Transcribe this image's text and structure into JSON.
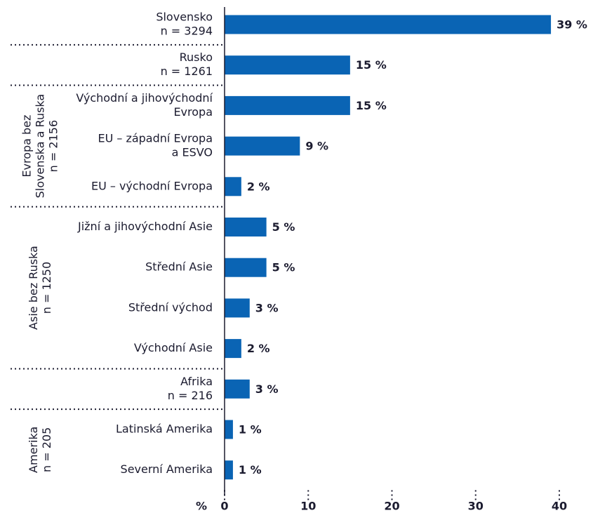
{
  "chart_data": {
    "type": "bar",
    "color": "#0a64b4",
    "xlabel": "%",
    "xlim": [
      0,
      40
    ],
    "xticks": [
      0,
      10,
      20,
      30,
      40
    ],
    "groups": [
      {
        "categories": [
          [
            "Slovensko",
            "n = 3294"
          ]
        ],
        "values": [
          39
        ],
        "value_labels": [
          "39 %"
        ]
      },
      {
        "categories": [
          [
            "Rusko",
            "n = 1261"
          ]
        ],
        "values": [
          15
        ],
        "value_labels": [
          "15 %"
        ]
      },
      {
        "name": [
          "Evropa bez",
          "Slovenska a Ruska",
          "n = 2156"
        ],
        "categories": [
          [
            "Východní a jihovýchodní",
            "Evropa"
          ],
          [
            "EU – západní Evropa",
            "a ESVO"
          ],
          [
            "EU – východní Evropa"
          ]
        ],
        "values": [
          15,
          9,
          2
        ],
        "value_labels": [
          "15 %",
          "9 %",
          "2 %"
        ]
      },
      {
        "name": [
          "Asie bez Ruska",
          "n = 1250"
        ],
        "categories": [
          [
            "Jižní a jihovýchodní Asie"
          ],
          [
            "Střední Asie"
          ],
          [
            "Střední východ"
          ],
          [
            "Východní Asie"
          ]
        ],
        "values": [
          5,
          5,
          3,
          2
        ],
        "value_labels": [
          "5 %",
          "5 %",
          "3 %",
          "2 %"
        ]
      },
      {
        "categories": [
          [
            "Afrika",
            "n = 216"
          ]
        ],
        "values": [
          3
        ],
        "value_labels": [
          "3 %"
        ]
      },
      {
        "name": [
          "Amerika",
          "n = 205"
        ],
        "categories": [
          [
            "Latinská Amerika"
          ],
          [
            "Severní Amerika"
          ]
        ],
        "values": [
          1,
          1
        ],
        "value_labels": [
          "1 %",
          "1 %"
        ]
      }
    ]
  }
}
